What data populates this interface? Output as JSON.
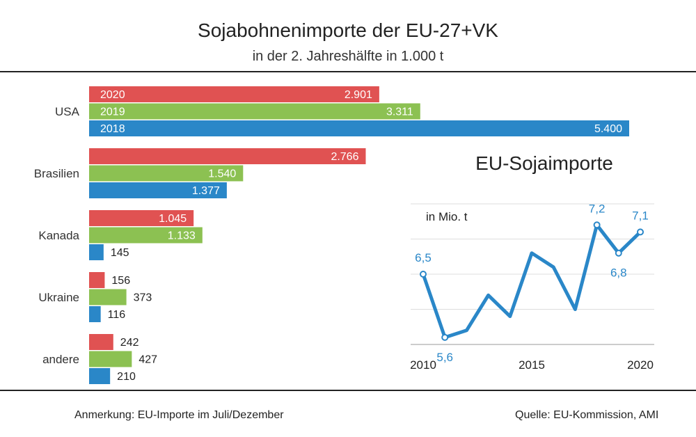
{
  "title": "Sojabohnenimporte  der EU-27+VK",
  "subtitle": "in der 2. Jahreshälfte  in 1.000 t",
  "footnote": "Anmerkung: EU-Importe im Juli/Dezember",
  "source": "Quelle:  EU-Kommission, AMI",
  "chart_data": [
    {
      "type": "bar",
      "orientation": "horizontal",
      "categories": [
        "USA",
        "Brasilien",
        "Kanada",
        "Ukraine",
        "andere"
      ],
      "series": [
        {
          "name": "2020",
          "color": "#e05252",
          "values": [
            2901,
            2766,
            1045,
            156,
            242
          ],
          "labels": [
            "2.901",
            "2.766",
            "1.045",
            "156",
            "242"
          ]
        },
        {
          "name": "2019",
          "color": "#8cc152",
          "values": [
            3311,
            1540,
            1133,
            373,
            427
          ],
          "labels": [
            "3.311",
            "1.540",
            "1.133",
            "373",
            "427"
          ]
        },
        {
          "name": "2018",
          "color": "#2a87c8",
          "values": [
            5400,
            1377,
            145,
            116,
            210
          ],
          "labels": [
            "5.400",
            "1.377",
            "145",
            "116",
            "210"
          ]
        }
      ],
      "legend": "inside first category bars"
    },
    {
      "type": "line",
      "title": "EU-Sojaimporte",
      "ylabel": "in Mio. t",
      "x": [
        2010,
        2011,
        2012,
        2013,
        2014,
        2015,
        2016,
        2017,
        2018,
        2019,
        2020
      ],
      "x_ticks": [
        "2010",
        "2015",
        "2020"
      ],
      "y": [
        6.5,
        5.6,
        5.7,
        6.2,
        5.9,
        6.8,
        6.6,
        6.0,
        7.2,
        6.8,
        7.1
      ],
      "ylim": [
        5.5,
        7.5
      ],
      "grid": true,
      "color": "#2a87c8",
      "labels": [
        {
          "index": 0,
          "text": "6,5"
        },
        {
          "index": 1,
          "text": "5,6"
        },
        {
          "index": 8,
          "text": "7,2"
        },
        {
          "index": 9,
          "text": "6,8"
        },
        {
          "index": 10,
          "text": "7,1"
        }
      ]
    }
  ]
}
